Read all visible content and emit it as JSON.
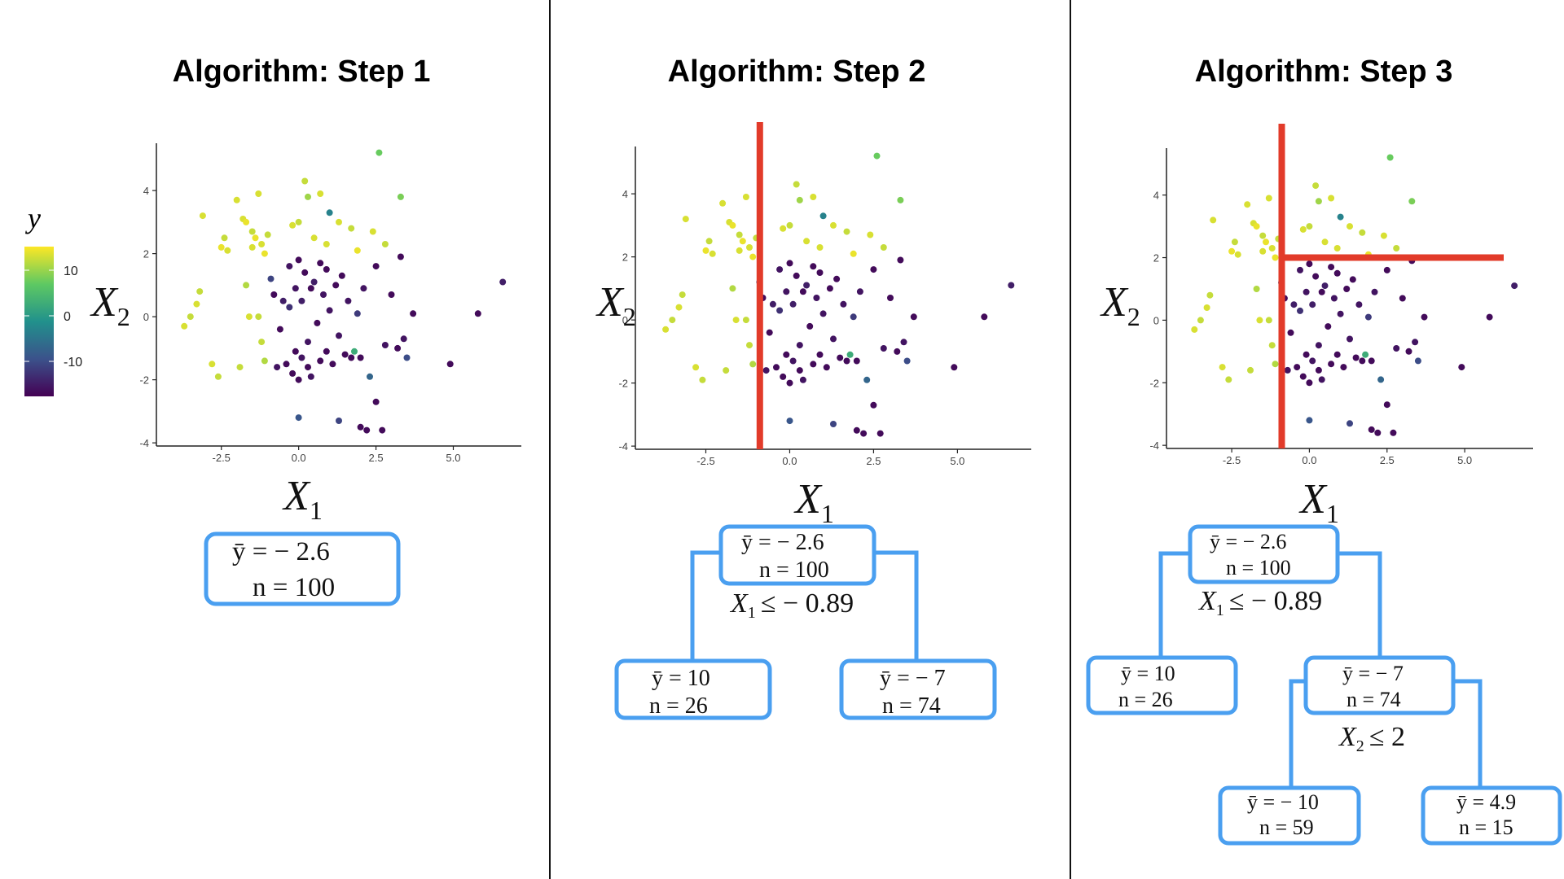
{
  "panels": [
    {
      "title": "Algorithm: Step 1",
      "xlabel": "X1",
      "ylabel": "X2",
      "x_ticks": [
        "-2.5",
        "0.0",
        "2.5",
        "5.0"
      ],
      "y_ticks": [
        "4",
        "2",
        "0",
        "-2",
        "-4"
      ],
      "splits": [],
      "tree": {
        "nodes": [
          {
            "id": "root",
            "mean": "ȳ = − 2.6",
            "n": "n = 100"
          }
        ],
        "rules": []
      }
    },
    {
      "title": "Algorithm: Step 2",
      "xlabel": "X1",
      "ylabel": "X2",
      "x_ticks": [
        "-2.5",
        "0.0",
        "2.5",
        "5.0"
      ],
      "y_ticks": [
        "4",
        "2",
        "0",
        "-2",
        "-4"
      ],
      "splits": [
        {
          "type": "vertical",
          "x": -0.89
        }
      ],
      "tree": {
        "nodes": [
          {
            "id": "root",
            "mean": "ȳ = − 2.6",
            "n": "n = 100"
          },
          {
            "id": "left",
            "mean": "ȳ = 10",
            "n": "n = 26"
          },
          {
            "id": "right",
            "mean": "ȳ = − 7",
            "n": "n = 74"
          }
        ],
        "rules": [
          {
            "var": "X",
            "sub": "1",
            "text": "≤ − 0.89"
          }
        ]
      }
    },
    {
      "title": "Algorithm: Step 3",
      "xlabel": "X1",
      "ylabel": "X2",
      "x_ticks": [
        "-2.5",
        "0.0",
        "2.5",
        "5.0"
      ],
      "y_ticks": [
        "4",
        "2",
        "0",
        "-2",
        "-4"
      ],
      "splits": [
        {
          "type": "vertical",
          "x": -0.89
        },
        {
          "type": "horizontal",
          "y": 2,
          "x_from": -0.89
        }
      ],
      "tree": {
        "nodes": [
          {
            "id": "root",
            "mean": "ȳ = − 2.6",
            "n": "n = 100"
          },
          {
            "id": "left",
            "mean": "ȳ = 10",
            "n": "n = 26"
          },
          {
            "id": "right",
            "mean": "ȳ = − 7",
            "n": "n = 74"
          },
          {
            "id": "right-left",
            "mean": "ȳ = − 10",
            "n": "n = 59"
          },
          {
            "id": "right-right",
            "mean": "ȳ = 4.9",
            "n": "n = 15"
          }
        ],
        "rules": [
          {
            "var": "X",
            "sub": "1",
            "text": "≤ − 0.89"
          },
          {
            "var": "X",
            "sub": "2",
            "text": "≤ 2"
          }
        ]
      }
    }
  ],
  "legend": {
    "title": "y",
    "ticks": [
      "10",
      "0",
      "-10"
    ],
    "colors": [
      "#440154",
      "#3b528b",
      "#21918c",
      "#5ec962",
      "#fde725"
    ]
  },
  "colors": {
    "split_line": "#e23b2a",
    "node_border": "#4a9ff0",
    "divider": "#111111"
  },
  "chart_data": {
    "type": "scatter",
    "xlabel": "X1",
    "ylabel": "X2",
    "color_label": "y",
    "xlim": [
      -4.6,
      7.2
    ],
    "ylim": [
      -4.1,
      5.5
    ],
    "color_range": [
      -17,
      17
    ],
    "points": [
      {
        "x": -3.7,
        "y": -0.3,
        "c": 15
      },
      {
        "x": -3.5,
        "y": 0.0,
        "c": 14
      },
      {
        "x": -3.3,
        "y": 0.4,
        "c": 15
      },
      {
        "x": -3.2,
        "y": 0.8,
        "c": 14
      },
      {
        "x": -3.1,
        "y": 3.2,
        "c": 15
      },
      {
        "x": -2.8,
        "y": -1.5,
        "c": 15
      },
      {
        "x": -2.6,
        "y": -1.9,
        "c": 14
      },
      {
        "x": -2.5,
        "y": 2.2,
        "c": 16
      },
      {
        "x": -2.4,
        "y": 2.5,
        "c": 14
      },
      {
        "x": -2.3,
        "y": 2.1,
        "c": 15
      },
      {
        "x": -2.0,
        "y": 3.7,
        "c": 15
      },
      {
        "x": -1.9,
        "y": -1.6,
        "c": 14
      },
      {
        "x": -1.8,
        "y": 3.1,
        "c": 15
      },
      {
        "x": -1.7,
        "y": 3.0,
        "c": 16
      },
      {
        "x": -1.7,
        "y": 1.0,
        "c": 13
      },
      {
        "x": -1.6,
        "y": 0.0,
        "c": 15
      },
      {
        "x": -1.5,
        "y": 2.7,
        "c": 14
      },
      {
        "x": -1.5,
        "y": 2.2,
        "c": 15
      },
      {
        "x": -1.4,
        "y": 2.5,
        "c": 16
      },
      {
        "x": -1.3,
        "y": 0.0,
        "c": 14
      },
      {
        "x": -1.3,
        "y": 3.9,
        "c": 15
      },
      {
        "x": -1.2,
        "y": -0.8,
        "c": 14
      },
      {
        "x": -1.2,
        "y": 2.3,
        "c": 15
      },
      {
        "x": -1.1,
        "y": 2.0,
        "c": 16
      },
      {
        "x": -1.1,
        "y": -1.4,
        "c": 13
      },
      {
        "x": -1.0,
        "y": 2.6,
        "c": 14
      },
      {
        "x": -0.9,
        "y": 1.2,
        "c": -10
      },
      {
        "x": -0.8,
        "y": 0.7,
        "c": -16
      },
      {
        "x": -0.7,
        "y": -1.6,
        "c": -15
      },
      {
        "x": -0.6,
        "y": -0.4,
        "c": -16
      },
      {
        "x": -0.5,
        "y": 0.5,
        "c": -14
      },
      {
        "x": -0.4,
        "y": -1.5,
        "c": -16
      },
      {
        "x": -0.3,
        "y": 0.3,
        "c": -12
      },
      {
        "x": -0.3,
        "y": 1.6,
        "c": -15
      },
      {
        "x": -0.2,
        "y": -1.8,
        "c": -16
      },
      {
        "x": -0.1,
        "y": -1.1,
        "c": -16
      },
      {
        "x": -0.1,
        "y": 0.9,
        "c": -15
      },
      {
        "x": 0.0,
        "y": -2.0,
        "c": -16
      },
      {
        "x": 0.0,
        "y": 1.8,
        "c": -16
      },
      {
        "x": 0.1,
        "y": -1.3,
        "c": -15
      },
      {
        "x": 0.1,
        "y": 0.5,
        "c": -14
      },
      {
        "x": 0.2,
        "y": 1.4,
        "c": -16
      },
      {
        "x": 0.3,
        "y": -1.6,
        "c": -16
      },
      {
        "x": 0.3,
        "y": -0.8,
        "c": -15
      },
      {
        "x": 0.4,
        "y": 0.9,
        "c": -16
      },
      {
        "x": 0.4,
        "y": -1.9,
        "c": -15
      },
      {
        "x": 0.5,
        "y": 1.1,
        "c": -14
      },
      {
        "x": 0.6,
        "y": -0.2,
        "c": -16
      },
      {
        "x": 0.7,
        "y": 1.7,
        "c": -16
      },
      {
        "x": 0.7,
        "y": -1.4,
        "c": -16
      },
      {
        "x": 0.8,
        "y": 0.7,
        "c": -15
      },
      {
        "x": 0.9,
        "y": -1.1,
        "c": -16
      },
      {
        "x": 0.9,
        "y": 1.5,
        "c": -16
      },
      {
        "x": 1.0,
        "y": 0.2,
        "c": -15
      },
      {
        "x": 1.0,
        "y": 3.3,
        "c": -2
      },
      {
        "x": 1.1,
        "y": -1.5,
        "c": -16
      },
      {
        "x": 1.2,
        "y": 1.0,
        "c": -16
      },
      {
        "x": 1.3,
        "y": -0.6,
        "c": -15
      },
      {
        "x": 1.4,
        "y": 1.3,
        "c": -16
      },
      {
        "x": 1.5,
        "y": -1.2,
        "c": -16
      },
      {
        "x": 1.6,
        "y": 0.5,
        "c": -15
      },
      {
        "x": 1.7,
        "y": -1.3,
        "c": -16
      },
      {
        "x": 1.8,
        "y": -1.1,
        "c": 4
      },
      {
        "x": 1.9,
        "y": 0.1,
        "c": -11
      },
      {
        "x": 2.0,
        "y": -1.3,
        "c": -16
      },
      {
        "x": 2.1,
        "y": 0.9,
        "c": -15
      },
      {
        "x": 2.3,
        "y": -1.9,
        "c": -6
      },
      {
        "x": 2.5,
        "y": 1.6,
        "c": -16
      },
      {
        "x": 2.5,
        "y": -2.7,
        "c": -16
      },
      {
        "x": 2.7,
        "y": -3.6,
        "c": -16
      },
      {
        "x": 2.8,
        "y": -0.9,
        "c": -15
      },
      {
        "x": 3.0,
        "y": 0.7,
        "c": -16
      },
      {
        "x": 3.2,
        "y": -1.0,
        "c": -16
      },
      {
        "x": 3.3,
        "y": 1.9,
        "c": -16
      },
      {
        "x": 3.4,
        "y": -0.7,
        "c": -15
      },
      {
        "x": 3.5,
        "y": -1.3,
        "c": -9
      },
      {
        "x": 3.7,
        "y": 0.1,
        "c": -16
      },
      {
        "x": 4.9,
        "y": -1.5,
        "c": -16
      },
      {
        "x": 5.8,
        "y": 0.1,
        "c": -16
      },
      {
        "x": 6.6,
        "y": 1.1,
        "c": -14
      },
      {
        "x": 0.0,
        "y": -3.2,
        "c": -8
      },
      {
        "x": 1.3,
        "y": -3.3,
        "c": -10
      },
      {
        "x": 2.0,
        "y": -3.5,
        "c": -16
      },
      {
        "x": 2.2,
        "y": -3.6,
        "c": -16
      },
      {
        "x": 0.2,
        "y": 4.3,
        "c": 14
      },
      {
        "x": 0.3,
        "y": 3.8,
        "c": 12
      },
      {
        "x": 0.7,
        "y": 3.9,
        "c": 15
      },
      {
        "x": 0.0,
        "y": 3.0,
        "c": 14
      },
      {
        "x": -0.2,
        "y": 2.9,
        "c": 15
      },
      {
        "x": 0.5,
        "y": 2.5,
        "c": 15
      },
      {
        "x": 1.3,
        "y": 3.0,
        "c": 15
      },
      {
        "x": 1.7,
        "y": 2.8,
        "c": 14
      },
      {
        "x": 2.4,
        "y": 2.7,
        "c": 15
      },
      {
        "x": 2.6,
        "y": 5.2,
        "c": 9
      },
      {
        "x": 3.3,
        "y": 3.8,
        "c": 10
      },
      {
        "x": 2.8,
        "y": 2.3,
        "c": 14
      },
      {
        "x": 1.9,
        "y": 2.1,
        "c": 16
      },
      {
        "x": 0.9,
        "y": 2.3,
        "c": 15
      }
    ]
  }
}
